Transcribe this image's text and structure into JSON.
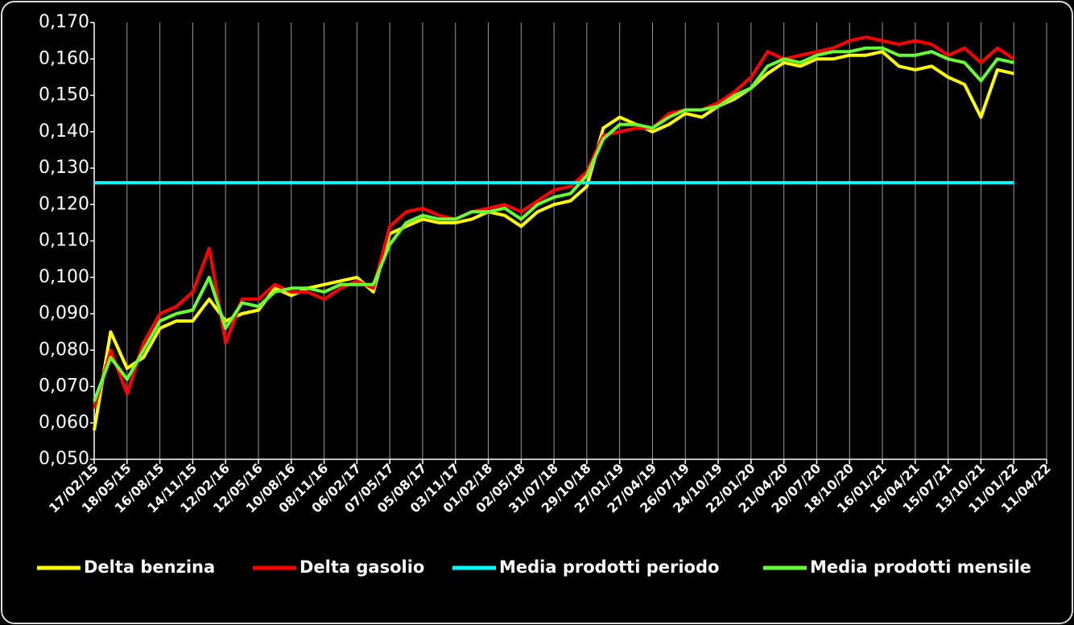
{
  "chart_data": {
    "type": "line",
    "categories": [
      "17/02/15",
      null,
      "18/05/15",
      null,
      "16/08/15",
      null,
      "14/11/15",
      null,
      "12/02/16",
      null,
      "12/05/16",
      null,
      "10/08/16",
      null,
      "08/11/16",
      null,
      "06/02/17",
      null,
      "07/05/17",
      null,
      "05/08/17",
      null,
      "03/11/17",
      null,
      "01/02/18",
      null,
      "02/05/18",
      null,
      "31/07/18",
      null,
      "29/10/18",
      null,
      "27/01/19",
      null,
      "27/04/19",
      null,
      "26/07/19",
      null,
      "24/10/19",
      null,
      "22/01/20",
      null,
      "21/04/20",
      null,
      "20/07/20",
      null,
      "18/10/20",
      null,
      "16/01/21",
      null,
      "16/04/21",
      null,
      "15/07/21",
      null,
      "13/10/21",
      null,
      "11/01/22",
      null,
      "11/04/22"
    ],
    "series": [
      {
        "name": "Delta benzina",
        "color": "#ffff00",
        "values": [
          0.058,
          0.085,
          0.075,
          0.078,
          0.086,
          0.088,
          0.088,
          0.094,
          0.088,
          0.09,
          0.091,
          0.097,
          0.095,
          0.097,
          0.098,
          0.099,
          0.1,
          0.096,
          0.112,
          0.114,
          0.116,
          0.115,
          0.115,
          0.116,
          0.118,
          0.117,
          0.114,
          0.118,
          0.12,
          0.121,
          0.125,
          0.141,
          0.144,
          0.142,
          0.14,
          0.142,
          0.145,
          0.144,
          0.147,
          0.149,
          0.152,
          0.156,
          0.159,
          0.158,
          0.16,
          0.16,
          0.161,
          0.161,
          0.162,
          0.158,
          0.157,
          0.158,
          0.155,
          0.153,
          0.144,
          0.157,
          0.156,
          null,
          null
        ]
      },
      {
        "name": "Delta gasolio",
        "color": "#ff0000",
        "values": [
          0.064,
          0.08,
          0.068,
          0.082,
          0.09,
          0.092,
          0.096,
          0.108,
          0.082,
          0.094,
          0.094,
          0.098,
          0.096,
          0.096,
          0.094,
          0.097,
          0.099,
          0.097,
          0.114,
          0.118,
          0.119,
          0.117,
          0.116,
          0.118,
          0.119,
          0.12,
          0.118,
          0.121,
          0.124,
          0.125,
          0.129,
          0.139,
          0.14,
          0.141,
          0.141,
          0.145,
          0.146,
          0.146,
          0.148,
          0.151,
          0.155,
          0.162,
          0.16,
          0.161,
          0.162,
          0.163,
          0.165,
          0.166,
          0.165,
          0.164,
          0.165,
          0.164,
          0.161,
          0.163,
          0.159,
          0.163,
          0.16,
          null,
          null
        ]
      },
      {
        "name": "Media prodotti periodo",
        "color": "#00ffff",
        "values": [
          0.126,
          0.126,
          0.126,
          0.126,
          0.126,
          0.126,
          0.126,
          0.126,
          0.126,
          0.126,
          0.126,
          0.126,
          0.126,
          0.126,
          0.126,
          0.126,
          0.126,
          0.126,
          0.126,
          0.126,
          0.126,
          0.126,
          0.126,
          0.126,
          0.126,
          0.126,
          0.126,
          0.126,
          0.126,
          0.126,
          0.126,
          0.126,
          0.126,
          0.126,
          0.126,
          0.126,
          0.126,
          0.126,
          0.126,
          0.126,
          0.126,
          0.126,
          0.126,
          0.126,
          0.126,
          0.126,
          0.126,
          0.126,
          0.126,
          0.126,
          0.126,
          0.126,
          0.126,
          0.126,
          0.126,
          0.126,
          0.126,
          null,
          null
        ]
      },
      {
        "name": "Media prodotti mensile",
        "color": "#66ff33",
        "values": [
          0.066,
          0.078,
          0.072,
          0.08,
          0.088,
          0.09,
          0.091,
          0.1,
          0.086,
          0.093,
          0.092,
          0.096,
          0.097,
          0.097,
          0.096,
          0.098,
          0.098,
          0.098,
          0.109,
          0.115,
          0.117,
          0.116,
          0.116,
          0.118,
          0.118,
          0.119,
          0.116,
          0.12,
          0.122,
          0.123,
          0.128,
          0.138,
          0.142,
          0.142,
          0.141,
          0.144,
          0.146,
          0.146,
          0.147,
          0.15,
          0.152,
          0.158,
          0.16,
          0.159,
          0.161,
          0.162,
          0.162,
          0.163,
          0.163,
          0.161,
          0.161,
          0.162,
          0.16,
          0.159,
          0.154,
          0.16,
          0.159,
          null,
          null
        ]
      }
    ],
    "ylim": [
      0.05,
      0.17
    ],
    "yticks": [
      {
        "value": 0.05,
        "label": "0,050"
      },
      {
        "value": 0.06,
        "label": "0,060"
      },
      {
        "value": 0.07,
        "label": "0,070"
      },
      {
        "value": 0.08,
        "label": "0,080"
      },
      {
        "value": 0.09,
        "label": "0,090"
      },
      {
        "value": 0.1,
        "label": "0,100"
      },
      {
        "value": 0.11,
        "label": "0,110"
      },
      {
        "value": 0.12,
        "label": "0,120"
      },
      {
        "value": 0.13,
        "label": "0,130"
      },
      {
        "value": 0.14,
        "label": "0,140"
      },
      {
        "value": 0.15,
        "label": "0,150"
      },
      {
        "value": 0.16,
        "label": "0,160"
      },
      {
        "value": 0.17,
        "label": "0,170"
      }
    ],
    "grid": "x",
    "legend": "bottom"
  }
}
